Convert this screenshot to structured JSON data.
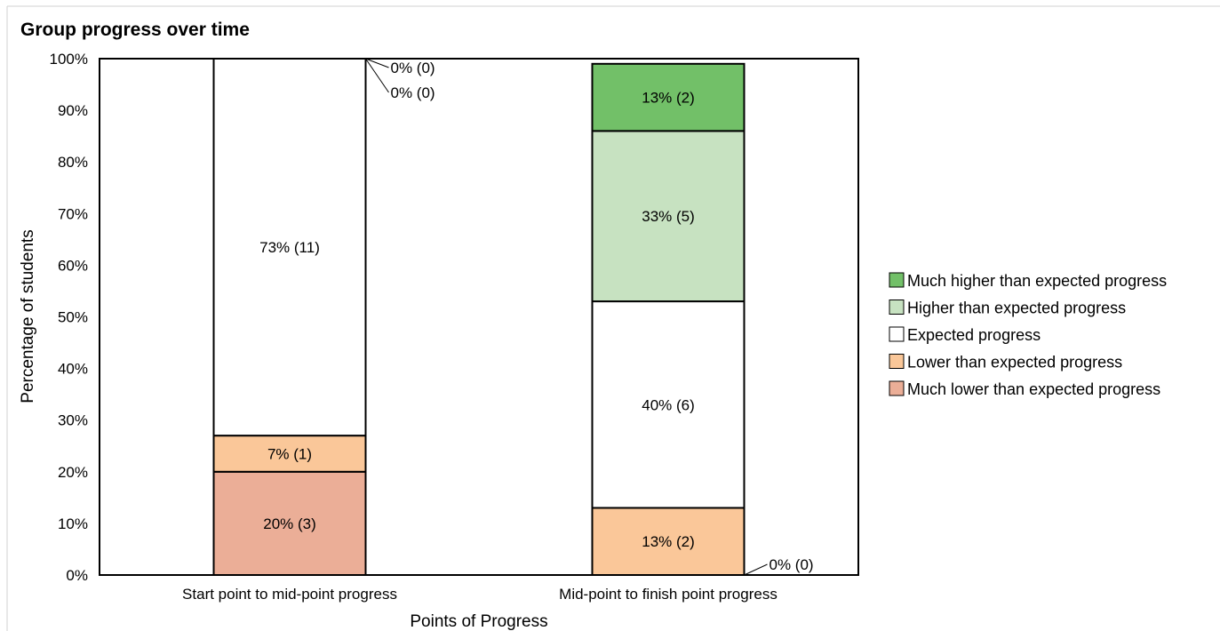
{
  "chart_data": {
    "type": "bar",
    "stacked": true,
    "title": "Group progress over time",
    "xlabel": "Points of Progress",
    "ylabel": "Percentage of students",
    "ylim": [
      0,
      100
    ],
    "yticks": [
      "0%",
      "10%",
      "20%",
      "30%",
      "40%",
      "50%",
      "60%",
      "70%",
      "80%",
      "90%",
      "100%"
    ],
    "categories": [
      "Start point to mid-point progress",
      "Mid-point to finish point progress"
    ],
    "series": [
      {
        "name": "Much lower than expected progress",
        "color": "#EBAE97",
        "values": [
          20,
          0
        ],
        "labels": [
          "20% (3)",
          "0% (0)"
        ]
      },
      {
        "name": "Lower than expected progress",
        "color": "#FAC799",
        "values": [
          7,
          13
        ],
        "labels": [
          "7% (1)",
          "13% (2)"
        ]
      },
      {
        "name": "Expected progress",
        "color": "#FFFFFF",
        "values": [
          73,
          40
        ],
        "labels": [
          "73% (11)",
          "40% (6)"
        ]
      },
      {
        "name": "Higher than expected progress",
        "color": "#C7E2C1",
        "values": [
          0,
          33
        ],
        "labels": [
          "0% (0)",
          "33% (5)"
        ]
      },
      {
        "name": "Much higher than expected progress",
        "color": "#72C068",
        "values": [
          0,
          13
        ],
        "labels": [
          "0% (0)",
          "13% (2)"
        ]
      }
    ],
    "legend_position": "right",
    "grid": false
  }
}
